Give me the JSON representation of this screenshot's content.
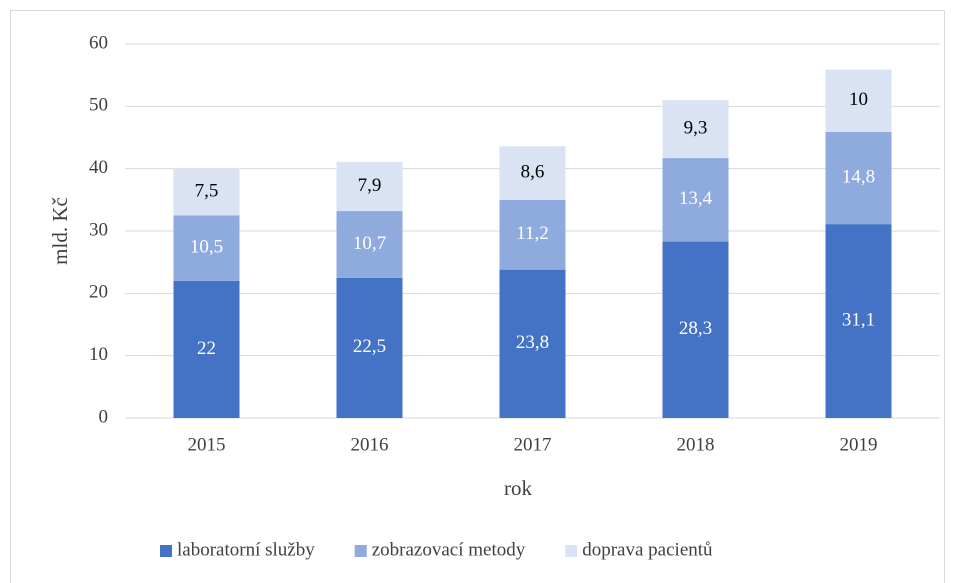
{
  "chart_data": {
    "type": "stacked_bar",
    "categories": [
      "2015",
      "2016",
      "2017",
      "2018",
      "2019"
    ],
    "series": [
      {
        "name": "laboratorní služby",
        "color": "#4472c4",
        "label_color": "#ffffff",
        "values": [
          22,
          22.5,
          23.8,
          28.3,
          31.1
        ],
        "value_labels": [
          "22",
          "22,5",
          "23,8",
          "28,3",
          "31,1"
        ]
      },
      {
        "name": "zobrazovací metody",
        "color": "#8faadc",
        "label_color": "#ffffff",
        "values": [
          10.5,
          10.7,
          11.2,
          13.4,
          14.8
        ],
        "value_labels": [
          "10,5",
          "10,7",
          "11,2",
          "13,4",
          "14,8"
        ]
      },
      {
        "name": "doprava pacientů",
        "color": "#dae3f3",
        "label_color": "#000000",
        "values": [
          7.5,
          7.9,
          8.6,
          9.3,
          10
        ],
        "value_labels": [
          "7,5",
          "7,9",
          "8,6",
          "9,3",
          "10"
        ]
      }
    ],
    "x_label": "rok",
    "y_label": "mld. Kč",
    "ylim": [
      0,
      60
    ],
    "yticks": [
      0,
      10,
      20,
      30,
      40,
      50,
      60
    ],
    "grid": true,
    "legend": "bottom"
  }
}
